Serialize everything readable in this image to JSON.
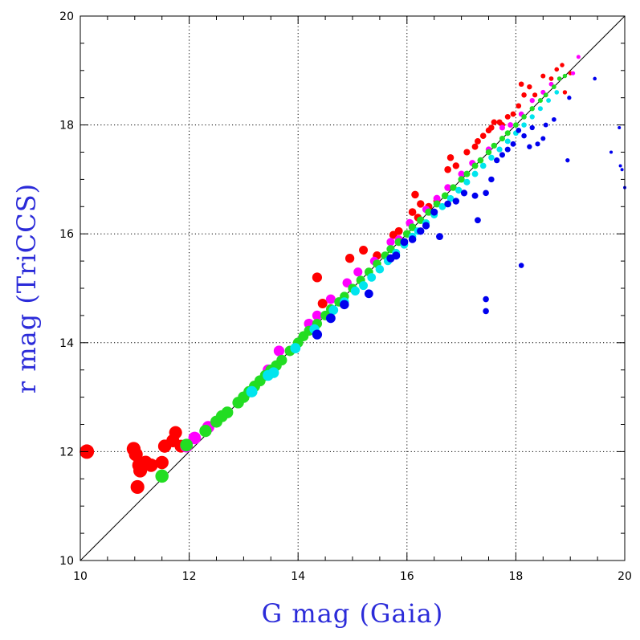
{
  "chart_data": {
    "type": "scatter",
    "xlabel": "G mag (Gaia)",
    "ylabel": "r mag (TriCCS)",
    "xlim": [
      10,
      20
    ],
    "ylim": [
      10,
      20
    ],
    "x_ticks": [
      "10",
      "12",
      "14",
      "16",
      "18",
      "20"
    ],
    "y_ticks": [
      "10",
      "12",
      "14",
      "16",
      "18",
      "20"
    ],
    "grid": true,
    "grid_style": "dotted",
    "reference_line": {
      "type": "identity",
      "from": [
        10,
        10
      ],
      "to": [
        20,
        20
      ]
    },
    "colors": {
      "red": "#ff0000",
      "magenta": "#ff00ff",
      "green": "#22dd22",
      "cyan": "#00e5ee",
      "blue": "#0000ee"
    },
    "series": [
      {
        "color_key": "red",
        "points": [
          [
            10.12,
            12.0
          ],
          [
            10.98,
            12.05
          ],
          [
            11.02,
            11.95
          ],
          [
            11.08,
            11.75
          ],
          [
            11.05,
            11.35
          ],
          [
            11.1,
            11.65
          ],
          [
            11.2,
            11.8
          ],
          [
            11.3,
            11.75
          ],
          [
            11.5,
            11.8
          ],
          [
            11.55,
            12.1
          ],
          [
            11.7,
            12.2
          ],
          [
            11.75,
            12.35
          ],
          [
            11.85,
            12.1
          ],
          [
            14.35,
            15.2
          ],
          [
            14.45,
            14.72
          ],
          [
            14.95,
            15.55
          ],
          [
            15.2,
            15.7
          ],
          [
            15.45,
            15.6
          ],
          [
            15.75,
            15.98
          ],
          [
            15.85,
            16.05
          ],
          [
            16.1,
            16.4
          ],
          [
            16.15,
            16.72
          ],
          [
            16.2,
            16.3
          ],
          [
            16.25,
            16.55
          ],
          [
            16.4,
            16.5
          ],
          [
            16.55,
            16.6
          ],
          [
            16.75,
            17.18
          ],
          [
            16.8,
            17.4
          ],
          [
            16.9,
            17.25
          ],
          [
            17.1,
            17.5
          ],
          [
            17.25,
            17.6
          ],
          [
            17.3,
            17.7
          ],
          [
            17.4,
            17.8
          ],
          [
            17.5,
            17.9
          ],
          [
            17.55,
            17.95
          ],
          [
            17.6,
            18.05
          ],
          [
            17.7,
            18.05
          ],
          [
            17.75,
            18.0
          ],
          [
            17.85,
            18.15
          ],
          [
            17.95,
            18.2
          ],
          [
            18.05,
            18.35
          ],
          [
            18.15,
            18.55
          ],
          [
            18.1,
            18.75
          ],
          [
            18.25,
            18.7
          ],
          [
            18.35,
            18.55
          ],
          [
            18.5,
            18.9
          ],
          [
            18.65,
            18.85
          ],
          [
            18.75,
            19.02
          ],
          [
            18.85,
            19.1
          ],
          [
            18.9,
            18.6
          ],
          [
            19.0,
            18.95
          ]
        ]
      },
      {
        "color_key": "magenta",
        "points": [
          [
            11.95,
            12.1
          ],
          [
            12.1,
            12.25
          ],
          [
            12.35,
            12.45
          ],
          [
            13.45,
            13.5
          ],
          [
            13.65,
            13.85
          ],
          [
            14.2,
            14.35
          ],
          [
            14.35,
            14.5
          ],
          [
            14.6,
            14.8
          ],
          [
            14.9,
            15.1
          ],
          [
            15.1,
            15.3
          ],
          [
            15.4,
            15.5
          ],
          [
            15.7,
            15.85
          ],
          [
            15.85,
            15.9
          ],
          [
            16.05,
            16.2
          ],
          [
            16.35,
            16.45
          ],
          [
            16.55,
            16.65
          ],
          [
            16.75,
            16.85
          ],
          [
            17.0,
            17.1
          ],
          [
            17.2,
            17.3
          ],
          [
            17.5,
            17.55
          ],
          [
            17.75,
            17.95
          ],
          [
            17.9,
            18.0
          ],
          [
            18.1,
            18.2
          ],
          [
            18.3,
            18.45
          ],
          [
            18.5,
            18.6
          ],
          [
            18.65,
            18.75
          ],
          [
            18.8,
            18.85
          ],
          [
            19.05,
            18.95
          ],
          [
            19.15,
            19.25
          ]
        ]
      },
      {
        "color_key": "green",
        "points": [
          [
            11.5,
            11.55
          ],
          [
            11.95,
            12.12
          ],
          [
            12.3,
            12.38
          ],
          [
            12.5,
            12.55
          ],
          [
            12.6,
            12.65
          ],
          [
            12.7,
            12.72
          ],
          [
            12.9,
            12.9
          ],
          [
            13.0,
            13.0
          ],
          [
            13.1,
            13.1
          ],
          [
            13.2,
            13.2
          ],
          [
            13.3,
            13.3
          ],
          [
            13.4,
            13.4
          ],
          [
            13.5,
            13.5
          ],
          [
            13.6,
            13.58
          ],
          [
            13.7,
            13.68
          ],
          [
            13.85,
            13.85
          ],
          [
            14.0,
            14.0
          ],
          [
            14.1,
            14.12
          ],
          [
            14.2,
            14.22
          ],
          [
            14.35,
            14.35
          ],
          [
            14.5,
            14.5
          ],
          [
            14.6,
            14.62
          ],
          [
            14.75,
            14.75
          ],
          [
            14.85,
            14.85
          ],
          [
            15.0,
            15.0
          ],
          [
            15.15,
            15.15
          ],
          [
            15.3,
            15.3
          ],
          [
            15.45,
            15.45
          ],
          [
            15.6,
            15.6
          ],
          [
            15.7,
            15.72
          ],
          [
            15.85,
            15.85
          ],
          [
            16.0,
            16.0
          ],
          [
            16.1,
            16.12
          ],
          [
            16.25,
            16.25
          ],
          [
            16.4,
            16.4
          ],
          [
            16.55,
            16.55
          ],
          [
            16.7,
            16.7
          ],
          [
            16.85,
            16.85
          ],
          [
            17.0,
            17.0
          ],
          [
            17.1,
            17.1
          ],
          [
            17.25,
            17.25
          ],
          [
            17.35,
            17.35
          ],
          [
            17.5,
            17.5
          ],
          [
            17.6,
            17.62
          ],
          [
            17.75,
            17.75
          ],
          [
            17.85,
            17.85
          ],
          [
            18.0,
            18.0
          ],
          [
            18.15,
            18.15
          ],
          [
            18.3,
            18.3
          ],
          [
            18.45,
            18.45
          ],
          [
            18.55,
            18.55
          ],
          [
            18.7,
            18.7
          ],
          [
            18.8,
            18.85
          ],
          [
            18.9,
            18.9
          ]
        ]
      },
      {
        "color_key": "cyan",
        "points": [
          [
            13.15,
            13.1
          ],
          [
            13.45,
            13.4
          ],
          [
            13.55,
            13.45
          ],
          [
            13.95,
            13.9
          ],
          [
            14.3,
            14.25
          ],
          [
            14.65,
            14.6
          ],
          [
            14.85,
            14.75
          ],
          [
            15.05,
            14.95
          ],
          [
            15.2,
            15.05
          ],
          [
            15.35,
            15.2
          ],
          [
            15.5,
            15.35
          ],
          [
            15.65,
            15.5
          ],
          [
            15.8,
            15.65
          ],
          [
            15.95,
            15.8
          ],
          [
            16.1,
            15.95
          ],
          [
            16.2,
            16.05
          ],
          [
            16.35,
            16.2
          ],
          [
            16.5,
            16.35
          ],
          [
            16.65,
            16.5
          ],
          [
            16.8,
            16.65
          ],
          [
            16.95,
            16.8
          ],
          [
            17.1,
            16.95
          ],
          [
            17.25,
            17.1
          ],
          [
            17.4,
            17.25
          ],
          [
            17.55,
            17.4
          ],
          [
            17.7,
            17.55
          ],
          [
            17.85,
            17.7
          ],
          [
            18.0,
            17.85
          ],
          [
            18.15,
            18.0
          ],
          [
            18.3,
            18.15
          ],
          [
            18.45,
            18.3
          ],
          [
            18.6,
            18.45
          ],
          [
            18.75,
            18.6
          ]
        ]
      },
      {
        "color_key": "blue",
        "points": [
          [
            14.35,
            14.15
          ],
          [
            14.6,
            14.45
          ],
          [
            14.85,
            14.7
          ],
          [
            15.3,
            14.9
          ],
          [
            15.7,
            15.55
          ],
          [
            15.8,
            15.6
          ],
          [
            15.95,
            15.85
          ],
          [
            16.1,
            15.9
          ],
          [
            16.25,
            16.05
          ],
          [
            16.35,
            16.15
          ],
          [
            16.5,
            16.4
          ],
          [
            16.6,
            15.95
          ],
          [
            16.75,
            16.55
          ],
          [
            16.9,
            16.6
          ],
          [
            17.05,
            16.75
          ],
          [
            17.25,
            16.7
          ],
          [
            17.3,
            16.25
          ],
          [
            17.45,
            16.75
          ],
          [
            17.55,
            17.0
          ],
          [
            17.45,
            14.8
          ],
          [
            17.45,
            14.58
          ],
          [
            17.65,
            17.35
          ],
          [
            17.75,
            17.45
          ],
          [
            17.85,
            17.55
          ],
          [
            17.95,
            17.65
          ],
          [
            18.05,
            17.9
          ],
          [
            18.1,
            15.42
          ],
          [
            18.15,
            17.8
          ],
          [
            18.25,
            17.6
          ],
          [
            18.3,
            17.95
          ],
          [
            18.4,
            17.65
          ],
          [
            18.5,
            17.75
          ],
          [
            18.55,
            18.0
          ],
          [
            18.7,
            18.1
          ],
          [
            18.95,
            17.35
          ],
          [
            18.98,
            18.5
          ],
          [
            19.45,
            18.85
          ],
          [
            19.75,
            17.5
          ],
          [
            19.9,
            17.95
          ],
          [
            19.92,
            17.25
          ],
          [
            19.95,
            17.18
          ],
          [
            20.0,
            16.85
          ]
        ]
      }
    ]
  }
}
